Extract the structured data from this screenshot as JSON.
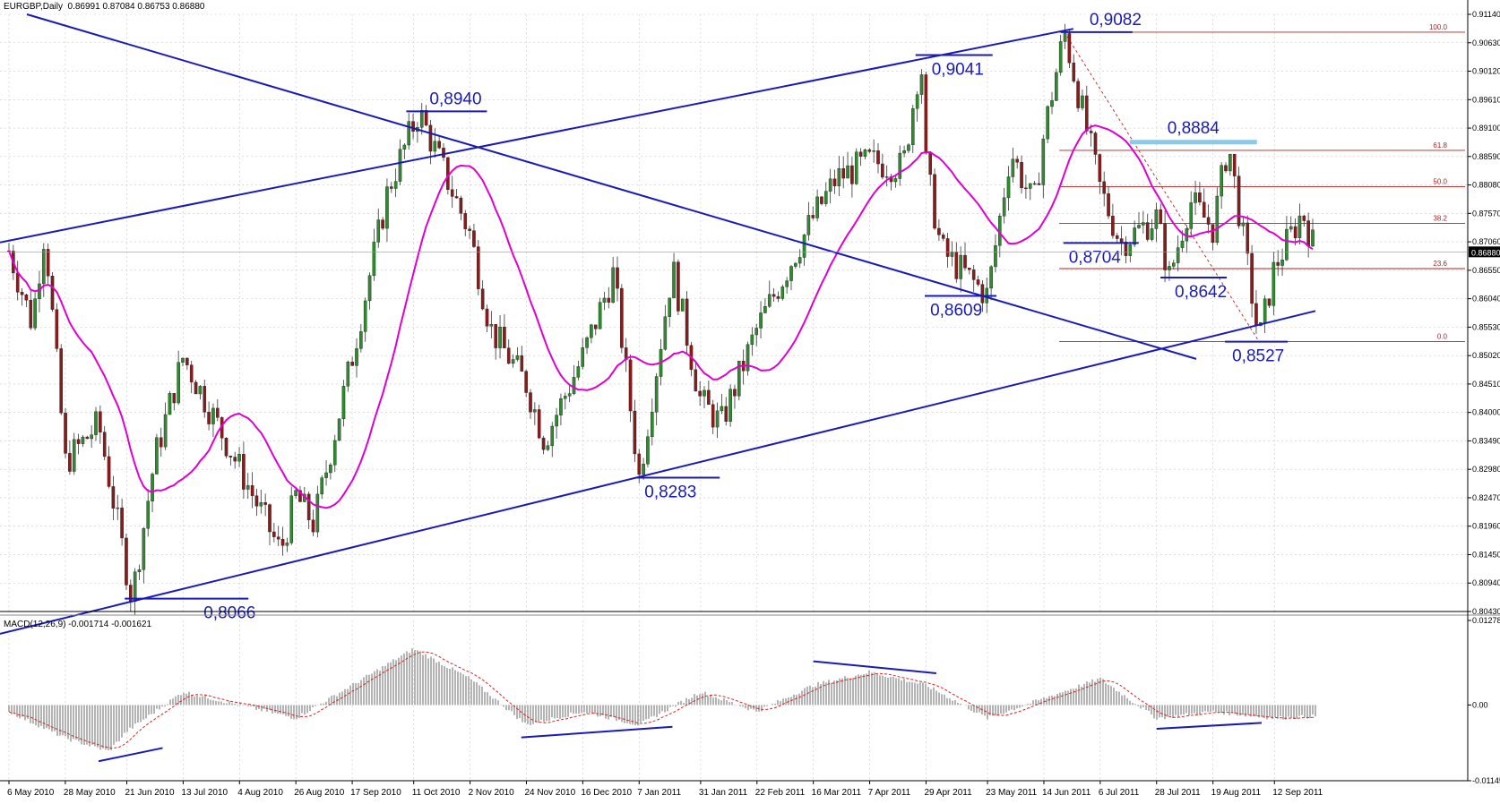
{
  "header": {
    "symbol": "EURGBP,Daily",
    "ohlc": "0.86991 0.87084 0.86753 0.86880"
  },
  "macd_header": "MACD(12,26,9) -0.001714 -0.001621",
  "colors": {
    "background": "#ffffff",
    "bull_candle": "#2e8b2e",
    "bear_candle": "#8b1a1a",
    "moving_average": "#e000d0",
    "trendline": "#1a1ab8",
    "fib": "#b22222",
    "fib_box": "#8ec8e6",
    "macd_hist": "#b4b4b4",
    "macd_signal": "#e02020",
    "grid": "#c8c8c8"
  },
  "chart_data": [
    {
      "type": "candlestick",
      "symbol": "EURGBP",
      "timeframe": "Daily",
      "last_price": "0.86880",
      "ylim": [
        0.8043,
        0.9114
      ],
      "y_ticks": [
        "0.91140",
        "0.90630",
        "0.90120",
        "0.89610",
        "0.89100",
        "0.88590",
        "0.88080",
        "0.87570",
        "0.87060",
        "0.86550",
        "0.86040",
        "0.85530",
        "0.85020",
        "0.84510",
        "0.84000",
        "0.83490",
        "0.82980",
        "0.82470",
        "0.81960",
        "0.81450",
        "0.80940",
        "0.80430"
      ],
      "x_tick_labels": [
        "6 May 2010",
        "28 May 2010",
        "21 Jun 2010",
        "13 Jul 2010",
        "4 Aug 2010",
        "26 Aug 2010",
        "17 Sep 2010",
        "11 Oct 2010",
        "2 Nov 2010",
        "24 Nov 2010",
        "16 Dec 2010",
        "7 Jan 2011",
        "31 Jan 2011",
        "22 Feb 2011",
        "16 Mar 2011",
        "7 Apr 2011",
        "29 Apr 2011",
        "23 May 2011",
        "14 Jun 2011",
        "6 Jul 2011",
        "28 Jul 2011",
        "19 Aug 2011",
        "12 Sep 2011"
      ],
      "price_path_anchors": [
        {
          "date": "6 May 2010",
          "close": 0.869
        },
        {
          "date": "15 May 2010",
          "close": 0.856
        },
        {
          "date": "20 May 2010",
          "close": 0.873
        },
        {
          "date": "28 May 2010",
          "close": 0.831
        },
        {
          "date": "10 Jun 2010",
          "close": 0.838
        },
        {
          "date": "23 Jun 2010",
          "close": 0.8066
        },
        {
          "date": "2 Jul 2010",
          "close": 0.832
        },
        {
          "date": "13 Jul 2010",
          "close": 0.85
        },
        {
          "date": "4 Aug 2010",
          "close": 0.83
        },
        {
          "date": "20 Aug 2010",
          "close": 0.815
        },
        {
          "date": "26 Aug 2010",
          "close": 0.825
        },
        {
          "date": "2 Sep 2010",
          "close": 0.82
        },
        {
          "date": "17 Sep 2010",
          "close": 0.85
        },
        {
          "date": "1 Oct 2010",
          "close": 0.88
        },
        {
          "date": "13 Oct 2010",
          "close": 0.894
        },
        {
          "date": "2 Nov 2010",
          "close": 0.872
        },
        {
          "date": "10 Nov 2010",
          "close": 0.855
        },
        {
          "date": "24 Nov 2010",
          "close": 0.845
        },
        {
          "date": "1 Dec 2010",
          "close": 0.835
        },
        {
          "date": "16 Dec 2010",
          "close": 0.85
        },
        {
          "date": "28 Dec 2010",
          "close": 0.865
        },
        {
          "date": "7 Jan 2011",
          "close": 0.8283
        },
        {
          "date": "20 Jan 2011",
          "close": 0.866
        },
        {
          "date": "31 Jan 2011",
          "close": 0.842
        },
        {
          "date": "8 Feb 2011",
          "close": 0.838
        },
        {
          "date": "22 Feb 2011",
          "close": 0.855
        },
        {
          "date": "16 Mar 2011",
          "close": 0.875
        },
        {
          "date": "25 Mar 2011",
          "close": 0.882
        },
        {
          "date": "7 Apr 2011",
          "close": 0.885
        },
        {
          "date": "20 Apr 2011",
          "close": 0.884
        },
        {
          "date": "27 Apr 2011",
          "close": 0.9041
        },
        {
          "date": "29 Apr 2011",
          "close": 0.884
        },
        {
          "date": "5 May 2011",
          "close": 0.869
        },
        {
          "date": "23 May 2011",
          "close": 0.8609
        },
        {
          "date": "1 Jun 2011",
          "close": 0.887
        },
        {
          "date": "10 Jun 2011",
          "close": 0.877
        },
        {
          "date": "14 Jun 2011",
          "close": 0.89
        },
        {
          "date": "22 Jun 2011",
          "close": 0.9082
        },
        {
          "date": "6 Jul 2011",
          "close": 0.88
        },
        {
          "date": "14 Jul 2011",
          "close": 0.8704
        },
        {
          "date": "28 Jul 2011",
          "close": 0.875
        },
        {
          "date": "2 Aug 2011",
          "close": 0.8642
        },
        {
          "date": "10 Aug 2011",
          "close": 0.878
        },
        {
          "date": "19 Aug 2011",
          "close": 0.873
        },
        {
          "date": "25 Aug 2011",
          "close": 0.8884
        },
        {
          "date": "6 Sep 2011",
          "close": 0.8527
        },
        {
          "date": "12 Sep 2011",
          "close": 0.866
        },
        {
          "date": "23 Sep 2011",
          "close": 0.876
        },
        {
          "date": "28 Sep 2011",
          "close": 0.8688
        }
      ],
      "annotations": [
        {
          "text": "0,9082",
          "price": 0.9082
        },
        {
          "text": "0,9041",
          "price": 0.9041
        },
        {
          "text": "0,8940",
          "price": 0.894
        },
        {
          "text": "0,8884",
          "price": 0.8884
        },
        {
          "text": "0,8704",
          "price": 0.8704
        },
        {
          "text": "0,8642",
          "price": 0.8642
        },
        {
          "text": "0,8609",
          "price": 0.8609
        },
        {
          "text": "0,8527",
          "price": 0.8527
        },
        {
          "text": "0,8283",
          "price": 0.8283
        },
        {
          "text": "0,8066",
          "price": 0.8066
        }
      ],
      "fibonacci": {
        "high": 0.9082,
        "low": 0.8527,
        "levels": [
          {
            "label": "100.0",
            "price": 0.9082
          },
          {
            "label": "61.8",
            "price": 0.887
          },
          {
            "label": "50.0",
            "price": 0.8805
          },
          {
            "label": "38.2",
            "price": 0.8739
          },
          {
            "label": "23.6",
            "price": 0.8658
          },
          {
            "label": "0.0",
            "price": 0.8527
          }
        ]
      },
      "grid": true
    },
    {
      "type": "histogram",
      "name": "MACD(12,26,9)",
      "main": -0.001714,
      "signal": -0.001621,
      "ylim": [
        -0.01145,
        0.012785
      ],
      "y_ticks": [
        "0.012785",
        "0.00",
        "-0.01145"
      ],
      "histogram_anchors": [
        {
          "date": "6 May 2010",
          "value": -0.001
        },
        {
          "date": "28 May 2010",
          "value": -0.005
        },
        {
          "date": "14 Jun 2010",
          "value": -0.007
        },
        {
          "date": "21 Jun 2010",
          "value": -0.004
        },
        {
          "date": "13 Jul 2010",
          "value": 0.002
        },
        {
          "date": "4 Aug 2010",
          "value": 0.0
        },
        {
          "date": "26 Aug 2010",
          "value": -0.002
        },
        {
          "date": "17 Sep 2010",
          "value": 0.003
        },
        {
          "date": "11 Oct 2010",
          "value": 0.0085
        },
        {
          "date": "2 Nov 2010",
          "value": 0.004
        },
        {
          "date": "24 Nov 2010",
          "value": -0.003
        },
        {
          "date": "16 Dec 2010",
          "value": -0.001
        },
        {
          "date": "7 Jan 2011",
          "value": -0.003
        },
        {
          "date": "31 Jan 2011",
          "value": 0.002
        },
        {
          "date": "22 Feb 2011",
          "value": -0.001
        },
        {
          "date": "16 Mar 2011",
          "value": 0.003
        },
        {
          "date": "7 Apr 2011",
          "value": 0.005
        },
        {
          "date": "29 Apr 2011",
          "value": 0.003
        },
        {
          "date": "23 May 2011",
          "value": -0.002
        },
        {
          "date": "14 Jun 2011",
          "value": 0.001
        },
        {
          "date": "6 Jul 2011",
          "value": 0.004
        },
        {
          "date": "28 Jul 2011",
          "value": -0.002
        },
        {
          "date": "19 Aug 2011",
          "value": -0.001
        },
        {
          "date": "12 Sep 2011",
          "value": -0.002
        },
        {
          "date": "28 Sep 2011",
          "value": -0.0017
        }
      ]
    }
  ]
}
